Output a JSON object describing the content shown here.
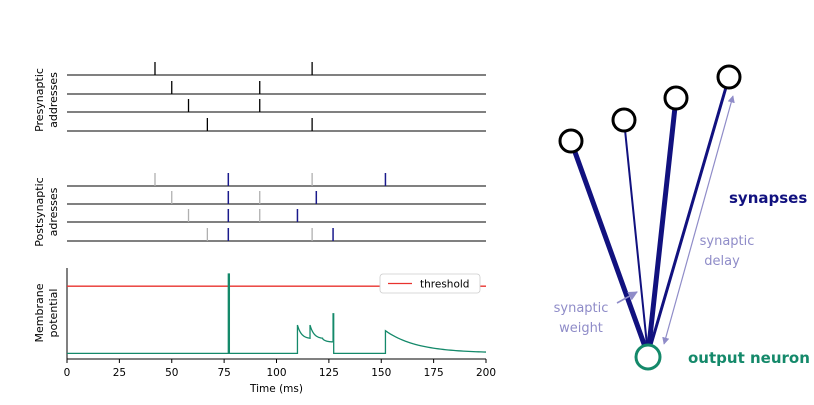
{
  "colors": {
    "pre_spike": "#000000",
    "post_spike_delayed": "#1a1a8c",
    "post_spike_ghost": "#b0b0b0",
    "threshold": "#e8322e",
    "membrane": "#14896a",
    "synapse": "#11117f",
    "annotation": "#8f8cc8",
    "output_neuron": "#14896a"
  },
  "chart_data": [
    {
      "type": "raster",
      "ylabel_lines": [
        "Presynaptic",
        "addresses"
      ],
      "xlim": [
        0,
        200
      ],
      "rows": 4,
      "spikes": [
        {
          "row": 0,
          "t": 42
        },
        {
          "row": 0,
          "t": 117
        },
        {
          "row": 1,
          "t": 50
        },
        {
          "row": 1,
          "t": 92
        },
        {
          "row": 2,
          "t": 58
        },
        {
          "row": 2,
          "t": 92
        },
        {
          "row": 3,
          "t": 67
        },
        {
          "row": 3,
          "t": 117
        }
      ]
    },
    {
      "type": "raster",
      "ylabel_lines": [
        "Postsynaptic",
        "adresses"
      ],
      "xlim": [
        0,
        200
      ],
      "rows": 4,
      "ghost_spikes": [
        {
          "row": 0,
          "t": 42
        },
        {
          "row": 0,
          "t": 117
        },
        {
          "row": 1,
          "t": 50
        },
        {
          "row": 1,
          "t": 92
        },
        {
          "row": 2,
          "t": 58
        },
        {
          "row": 2,
          "t": 92
        },
        {
          "row": 3,
          "t": 67
        },
        {
          "row": 3,
          "t": 117
        }
      ],
      "delayed_spikes": [
        {
          "row": 0,
          "t": 77
        },
        {
          "row": 0,
          "t": 152
        },
        {
          "row": 1,
          "t": 77
        },
        {
          "row": 1,
          "t": 119
        },
        {
          "row": 2,
          "t": 77
        },
        {
          "row": 2,
          "t": 110
        },
        {
          "row": 3,
          "t": 77
        },
        {
          "row": 3,
          "t": 127
        }
      ]
    },
    {
      "type": "line",
      "ylabel_lines": [
        "Membrane",
        "potential"
      ],
      "xlabel": "Time (ms)",
      "xlim": [
        0,
        200
      ],
      "ylim": [
        0,
        1.05
      ],
      "xticks": [
        0,
        25,
        50,
        75,
        100,
        125,
        150,
        175,
        200
      ],
      "threshold": 0.85,
      "legend": "threshold",
      "legend_position": "upper-right",
      "series": [
        {
          "x": [
            0,
            77,
            77,
            77.5,
            77.5,
            110,
            110,
            116,
            116,
            122,
            127,
            127,
            127.3,
            127.3,
            152,
            152,
            200
          ],
          "y": [
            0.02,
            0.02,
            1.0,
            1.0,
            0.02,
            0.02,
            0.37,
            0.2,
            0.37,
            0.2,
            0.16,
            0.51,
            0.51,
            0.02,
            0.02,
            0.3,
            0.025
          ],
          "decay_segments": [
            [
              110,
              116
            ],
            [
              116,
              122
            ],
            [
              122,
              127
            ],
            [
              152,
              200
            ]
          ]
        }
      ]
    }
  ],
  "diagram": {
    "labels": {
      "synapses": "synapses",
      "synaptic_delay_line1": "synaptic",
      "synaptic_delay_line2": "delay",
      "synaptic_weight_line1": "synaptic",
      "synaptic_weight_line2": "weight",
      "output_neuron": "output neuron"
    },
    "input_neurons": 4,
    "synapse_weights": [
      "strong",
      "weak",
      "strong",
      "medium"
    ]
  }
}
